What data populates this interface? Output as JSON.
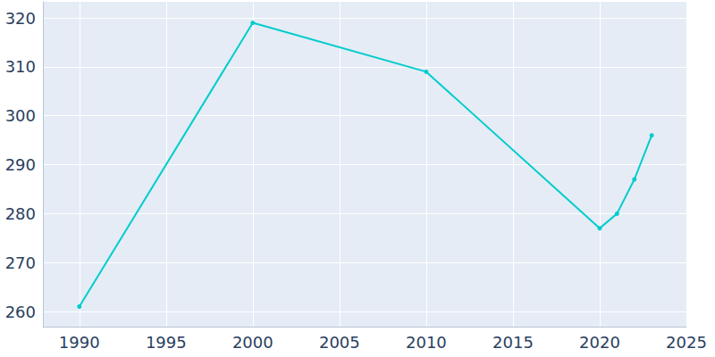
{
  "chart_data": {
    "type": "line",
    "x": [
      1990,
      2000,
      2010,
      2020,
      2021,
      2022,
      2023
    ],
    "values": [
      261,
      319,
      309,
      277,
      280,
      287,
      296
    ],
    "color": "#00cccc",
    "marker": "circle",
    "xlim": [
      1987.9,
      2025
    ],
    "xticks": [
      1990,
      1995,
      2000,
      2005,
      2010,
      2015,
      2020,
      2025
    ],
    "ylim": [
      256.9,
      323.3
    ],
    "yticks": [
      260,
      270,
      280,
      290,
      300,
      310,
      320
    ],
    "grid": true
  }
}
